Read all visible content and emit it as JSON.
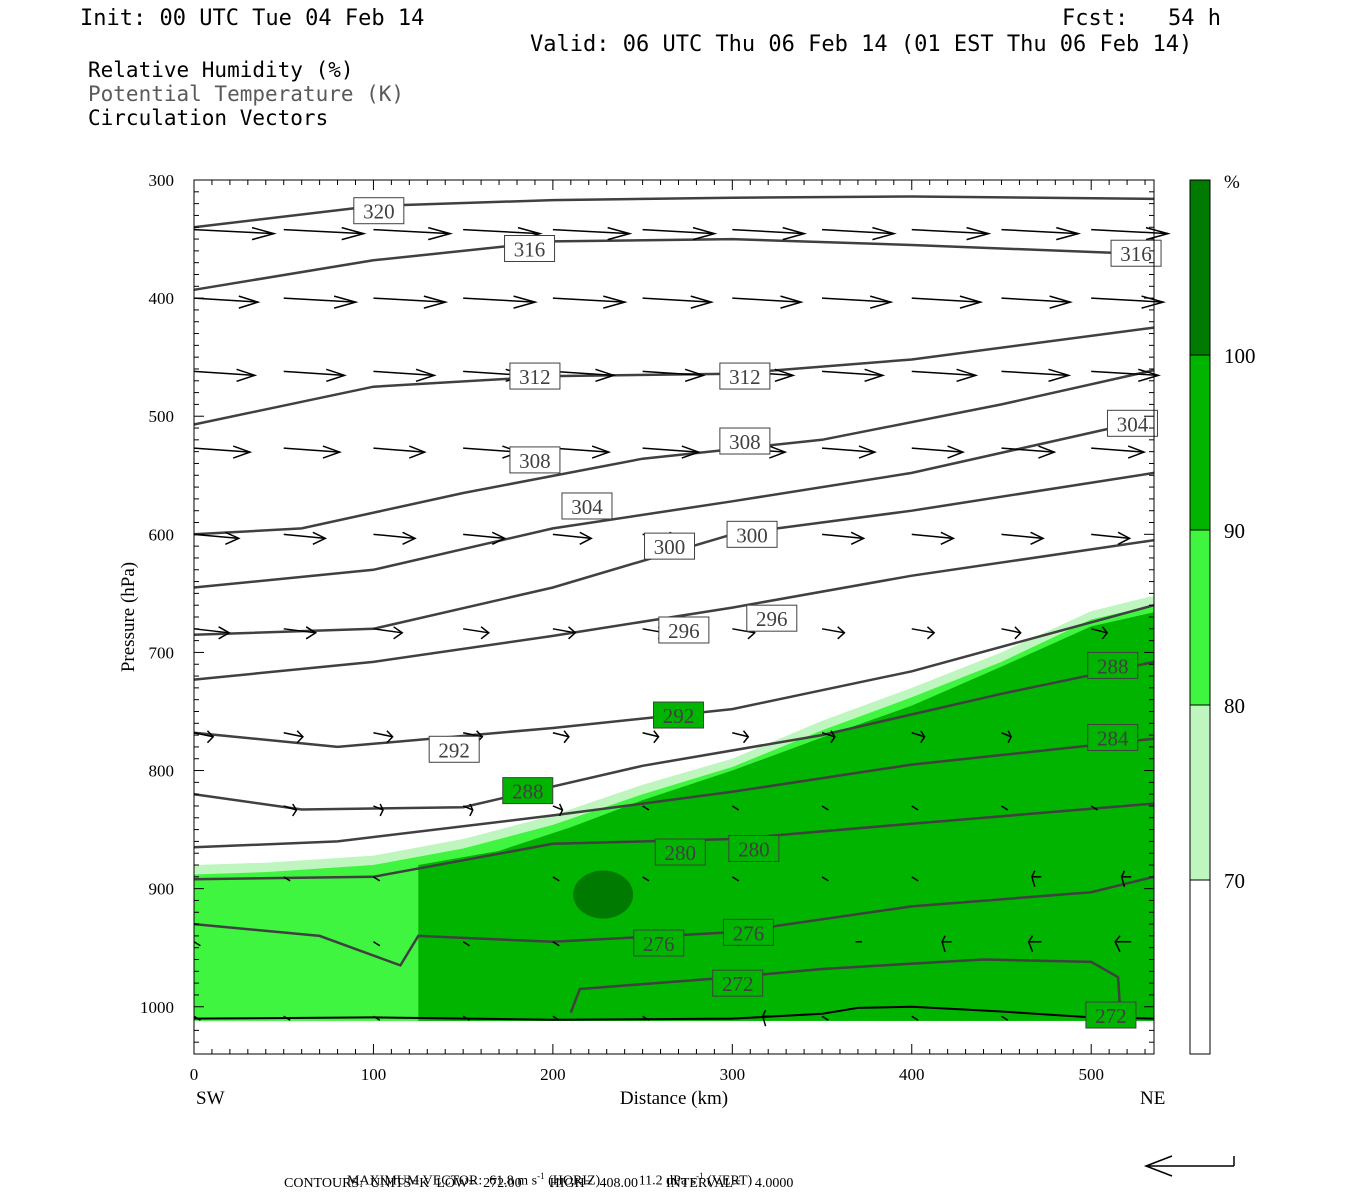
{
  "header": {
    "init": "Init: 00 UTC Tue 04 Feb 14",
    "fcst": "Fcst:   54 h",
    "valid": "Valid: 06 UTC Thu 06 Feb 14 (01 EST Thu 06 Feb 14)"
  },
  "fields": {
    "rh": "Relative Humidity (%)",
    "theta": "Potential Temperature (K)",
    "vectors": "Circulation Vectors"
  },
  "footer": {
    "max_vector_label": "MAXIMUM VECTOR:",
    "horiz_value": "61.8 m s",
    "horiz_exp": "-1",
    "horiz_tag": "(HORIZ)",
    "vert_value": "11.2 dPa s",
    "vert_exp": "-1",
    "vert_tag": "(VERT)",
    "contours": "CONTOURS:  UNITS=K  LOW=  272.00        HIGH=  408.00        INTERVAL=    4.0000"
  },
  "colors": {
    "rh_70_80": "#bff5bf",
    "rh_80_90": "#3ff53f",
    "rh_90_100": "#00b400",
    "rh_100": "#007a00",
    "contour": "#404040",
    "vector": "#000000"
  },
  "chart_data": {
    "type": "cross-section",
    "xlabel": "Distance (km)",
    "ylabel": "Pressure (hPa)",
    "x_start_label": "SW",
    "x_end_label": "NE",
    "xlim": [
      0,
      535
    ],
    "ylim": [
      1040,
      300
    ],
    "y_scale": "linear (pressure, inverted)",
    "x_ticks": [
      "0",
      "100",
      "200",
      "300",
      "400",
      "500"
    ],
    "x_tick_values": [
      0,
      100,
      200,
      300,
      400,
      500
    ],
    "y_ticks": [
      "300",
      "400",
      "500",
      "600",
      "700",
      "800",
      "900",
      "1000"
    ],
    "y_tick_values": [
      300,
      400,
      500,
      600,
      700,
      800,
      900,
      1000
    ],
    "colorbar": {
      "unit": "%",
      "levels": [
        "70",
        "80",
        "90",
        "100"
      ],
      "level_values": [
        70,
        80,
        90,
        100
      ]
    },
    "rh_regions": [
      {
        "name": "RH 70-80",
        "color_key": "rh_70_80",
        "top": [
          [
            0,
            880
          ],
          [
            40,
            878
          ],
          [
            100,
            872
          ],
          [
            150,
            858
          ],
          [
            200,
            838
          ],
          [
            250,
            812
          ],
          [
            300,
            790
          ],
          [
            350,
            758
          ],
          [
            400,
            730
          ],
          [
            450,
            700
          ],
          [
            500,
            665
          ],
          [
            535,
            652
          ]
        ]
      },
      {
        "name": "RH 80-90",
        "color_key": "rh_80_90",
        "top": [
          [
            0,
            888
          ],
          [
            40,
            886
          ],
          [
            100,
            880
          ],
          [
            150,
            866
          ],
          [
            200,
            846
          ],
          [
            250,
            820
          ],
          [
            300,
            797
          ],
          [
            350,
            766
          ],
          [
            400,
            738
          ],
          [
            450,
            708
          ],
          [
            500,
            672
          ],
          [
            535,
            660
          ]
        ]
      },
      {
        "name": "RH 90-100",
        "color_key": "rh_90_100",
        "top": [
          [
            125,
            880
          ],
          [
            170,
            868
          ],
          [
            210,
            848
          ],
          [
            250,
            825
          ],
          [
            300,
            800
          ],
          [
            350,
            772
          ],
          [
            400,
            745
          ],
          [
            450,
            712
          ],
          [
            500,
            678
          ],
          [
            535,
            666
          ]
        ]
      },
      {
        "name": "RH >100",
        "color_key": "rh_100",
        "center": [
          228,
          905
        ]
      }
    ],
    "theta_contours": [
      {
        "label": "320",
        "points": [
          [
            0,
            340
          ],
          [
            100,
            322
          ],
          [
            200,
            317
          ],
          [
            300,
            315
          ],
          [
            400,
            314
          ],
          [
            535,
            316
          ]
        ],
        "label_at": [
          103,
          326
        ]
      },
      {
        "label": "316",
        "points": [
          [
            0,
            393
          ],
          [
            100,
            368
          ],
          [
            200,
            352
          ],
          [
            300,
            350
          ],
          [
            400,
            355
          ],
          [
            535,
            363
          ]
        ],
        "label_at": [
          187,
          358
        ],
        "label2_at": [
          525,
          362
        ]
      },
      {
        "label": "312",
        "points": [
          [
            0,
            507
          ],
          [
            100,
            475
          ],
          [
            200,
            466
          ],
          [
            300,
            464
          ],
          [
            400,
            452
          ],
          [
            535,
            425
          ]
        ],
        "label_at": [
          190,
          466
        ],
        "label2_at": [
          307,
          466
        ]
      },
      {
        "label": "308",
        "points": [
          [
            0,
            600
          ],
          [
            60,
            595
          ],
          [
            150,
            565
          ],
          [
            250,
            536
          ],
          [
            350,
            520
          ],
          [
            450,
            490
          ],
          [
            535,
            461
          ]
        ],
        "label_at": [
          190,
          537
        ],
        "label2_at": [
          307,
          521
        ]
      },
      {
        "label": "304",
        "points": [
          [
            0,
            645
          ],
          [
            100,
            630
          ],
          [
            200,
            595
          ],
          [
            300,
            572
          ],
          [
            400,
            548
          ],
          [
            535,
            502
          ]
        ],
        "label_at": [
          219,
          576
        ],
        "label2_at": [
          523,
          506
        ]
      },
      {
        "label": "300",
        "points": [
          [
            0,
            685
          ],
          [
            100,
            680
          ],
          [
            200,
            645
          ],
          [
            300,
            600
          ],
          [
            400,
            580
          ],
          [
            535,
            548
          ]
        ],
        "label_at": [
          265,
          610
        ],
        "label2_at": [
          311,
          600
        ]
      },
      {
        "label": "296",
        "points": [
          [
            0,
            723
          ],
          [
            100,
            708
          ],
          [
            200,
            686
          ],
          [
            300,
            662
          ],
          [
            400,
            635
          ],
          [
            535,
            605
          ]
        ],
        "label_at": [
          273,
          681
        ],
        "label2_at": [
          322,
          671
        ]
      },
      {
        "label": "292",
        "points": [
          [
            0,
            768
          ],
          [
            80,
            780
          ],
          [
            200,
            764
          ],
          [
            300,
            748
          ],
          [
            400,
            716
          ],
          [
            535,
            660
          ]
        ],
        "label_at": [
          145,
          782
        ],
        "label2_at": [
          270,
          753
        ]
      },
      {
        "label": "288",
        "points": [
          [
            0,
            820
          ],
          [
            60,
            833
          ],
          [
            150,
            831
          ],
          [
            250,
            796
          ],
          [
            350,
            770
          ],
          [
            450,
            735
          ],
          [
            535,
            708
          ]
        ],
        "label_at": [
          186,
          817
        ],
        "label2_at": [
          512,
          711
        ]
      },
      {
        "label": "284",
        "points": [
          [
            0,
            865
          ],
          [
            80,
            860
          ],
          [
            200,
            838
          ],
          [
            300,
            818
          ],
          [
            400,
            795
          ],
          [
            535,
            773
          ]
        ],
        "label_at": [
          512,
          772
        ]
      },
      {
        "label": "280",
        "points": [
          [
            0,
            892
          ],
          [
            100,
            890
          ],
          [
            200,
            862
          ],
          [
            300,
            858
          ],
          [
            400,
            845
          ],
          [
            535,
            828
          ]
        ],
        "label_at": [
          271,
          869
        ],
        "label2_at": [
          312,
          866
        ]
      },
      {
        "label": "276",
        "points": [
          [
            0,
            930
          ],
          [
            70,
            940
          ],
          [
            115,
            965
          ],
          [
            125,
            940
          ],
          [
            200,
            945
          ],
          [
            300,
            937
          ],
          [
            400,
            915
          ],
          [
            500,
            903
          ],
          [
            535,
            890
          ]
        ],
        "label_at": [
          259,
          946
        ],
        "label2_at": [
          309,
          937
        ]
      },
      {
        "label": "272",
        "points": [
          [
            210,
            1005
          ],
          [
            215,
            985
          ],
          [
            300,
            975
          ],
          [
            350,
            968
          ],
          [
            440,
            960
          ],
          [
            500,
            962
          ],
          [
            515,
            975
          ],
          [
            516,
            1000
          ]
        ],
        "label_at": [
          303,
          980
        ],
        "label2_at": [
          511,
          1007
        ]
      }
    ],
    "vectors": [
      {
        "y": 342,
        "row": [
          [
            0,
            50
          ],
          [
            50,
            50
          ],
          [
            100,
            48
          ],
          [
            150,
            48
          ],
          [
            200,
            48
          ],
          [
            250,
            45
          ],
          [
            300,
            45
          ],
          [
            350,
            45
          ],
          [
            400,
            48
          ],
          [
            450,
            48
          ],
          [
            500,
            48
          ]
        ]
      },
      {
        "y": 400,
        "row": [
          [
            0,
            40
          ],
          [
            50,
            45
          ],
          [
            100,
            45
          ],
          [
            150,
            45
          ],
          [
            200,
            45
          ],
          [
            250,
            43
          ],
          [
            300,
            43
          ],
          [
            350,
            43
          ],
          [
            400,
            43
          ],
          [
            450,
            43
          ],
          [
            500,
            45
          ]
        ]
      },
      {
        "y": 462,
        "row": [
          [
            0,
            38
          ],
          [
            50,
            38
          ],
          [
            100,
            38
          ],
          [
            150,
            38
          ],
          [
            200,
            38
          ],
          [
            250,
            38
          ],
          [
            300,
            38
          ],
          [
            350,
            38
          ],
          [
            400,
            40
          ],
          [
            450,
            42
          ],
          [
            500,
            42
          ]
        ]
      },
      {
        "y": 527,
        "row": [
          [
            0,
            35
          ],
          [
            50,
            35
          ],
          [
            100,
            32
          ],
          [
            150,
            35
          ],
          [
            200,
            35
          ],
          [
            250,
            35
          ],
          [
            300,
            33
          ],
          [
            350,
            33
          ],
          [
            400,
            32
          ],
          [
            450,
            33
          ],
          [
            500,
            33
          ]
        ]
      },
      {
        "y": 600,
        "row": [
          [
            0,
            28
          ],
          [
            50,
            26
          ],
          [
            100,
            26
          ],
          [
            150,
            26
          ],
          [
            200,
            24
          ],
          [
            250,
            24
          ],
          [
            300,
            26
          ],
          [
            350,
            26
          ],
          [
            400,
            26
          ],
          [
            450,
            26
          ],
          [
            500,
            24
          ]
        ]
      },
      {
        "y": 680,
        "row": [
          [
            0,
            22
          ],
          [
            50,
            20
          ],
          [
            100,
            18
          ],
          [
            150,
            16
          ],
          [
            200,
            14
          ],
          [
            250,
            14
          ],
          [
            300,
            14
          ],
          [
            350,
            14
          ],
          [
            400,
            14
          ],
          [
            450,
            12
          ],
          [
            500,
            10
          ]
        ]
      },
      {
        "y": 768,
        "row": [
          [
            0,
            12
          ],
          [
            50,
            12
          ],
          [
            100,
            12
          ],
          [
            150,
            12
          ],
          [
            200,
            10
          ],
          [
            250,
            10
          ],
          [
            300,
            10
          ],
          [
            350,
            8
          ],
          [
            400,
            8
          ],
          [
            450,
            6
          ],
          [
            500,
            6
          ]
        ]
      },
      {
        "y": 830,
        "row": [
          [
            50,
            8
          ],
          [
            100,
            6
          ],
          [
            150,
            6
          ],
          [
            200,
            6
          ],
          [
            250,
            4
          ],
          [
            300,
            4
          ],
          [
            350,
            4
          ],
          [
            400,
            4
          ],
          [
            450,
            4
          ],
          [
            500,
            4
          ]
        ]
      },
      {
        "y": 890,
        "row": [
          [
            50,
            4
          ],
          [
            100,
            4
          ],
          [
            200,
            4
          ],
          [
            250,
            4
          ],
          [
            300,
            4
          ],
          [
            350,
            4
          ],
          [
            400,
            4
          ],
          [
            450,
            -6
          ],
          [
            500,
            -6
          ]
        ]
      },
      {
        "y": 945,
        "row": [
          [
            0,
            4
          ],
          [
            100,
            4
          ],
          [
            150,
            4
          ],
          [
            200,
            4
          ],
          [
            250,
            4
          ],
          [
            300,
            4
          ],
          [
            350,
            -4
          ],
          [
            400,
            -6
          ],
          [
            450,
            -8
          ],
          [
            500,
            -10
          ]
        ]
      },
      {
        "y": 1008,
        "row": [
          [
            0,
            4
          ],
          [
            50,
            4
          ],
          [
            100,
            4
          ],
          [
            150,
            4
          ],
          [
            200,
            4
          ],
          [
            250,
            4
          ],
          [
            300,
            -6
          ],
          [
            350,
            4
          ],
          [
            400,
            4
          ],
          [
            450,
            4
          ]
        ]
      }
    ]
  }
}
